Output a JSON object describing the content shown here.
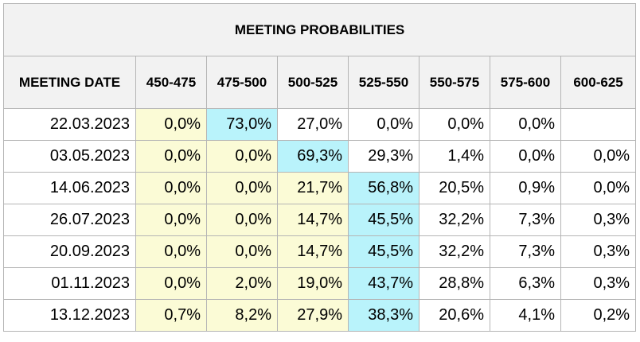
{
  "table": {
    "title": "MEETING PROBABILITIES",
    "headers": [
      "MEETING DATE",
      "450-475",
      "475-500",
      "500-525",
      "525-550",
      "550-575",
      "575-600",
      "600-625"
    ],
    "rows": [
      {
        "date": "22.03.2023",
        "cells": [
          {
            "v": "0,0%",
            "bg": "y"
          },
          {
            "v": "73,0%",
            "bg": "c"
          },
          {
            "v": "27,0%",
            "bg": "w"
          },
          {
            "v": "0,0%",
            "bg": "w"
          },
          {
            "v": "0,0%",
            "bg": "w"
          },
          {
            "v": "0,0%",
            "bg": "w"
          },
          {
            "v": "",
            "bg": "w"
          }
        ]
      },
      {
        "date": "03.05.2023",
        "cells": [
          {
            "v": "0,0%",
            "bg": "y"
          },
          {
            "v": "0,0%",
            "bg": "y"
          },
          {
            "v": "69,3%",
            "bg": "c"
          },
          {
            "v": "29,3%",
            "bg": "w"
          },
          {
            "v": "1,4%",
            "bg": "w"
          },
          {
            "v": "0,0%",
            "bg": "w"
          },
          {
            "v": "0,0%",
            "bg": "w"
          }
        ]
      },
      {
        "date": "14.06.2023",
        "cells": [
          {
            "v": "0,0%",
            "bg": "y"
          },
          {
            "v": "0,0%",
            "bg": "y"
          },
          {
            "v": "21,7%",
            "bg": "y"
          },
          {
            "v": "56,8%",
            "bg": "c"
          },
          {
            "v": "20,5%",
            "bg": "w"
          },
          {
            "v": "0,9%",
            "bg": "w"
          },
          {
            "v": "0,0%",
            "bg": "w"
          }
        ]
      },
      {
        "date": "26.07.2023",
        "cells": [
          {
            "v": "0,0%",
            "bg": "y"
          },
          {
            "v": "0,0%",
            "bg": "y"
          },
          {
            "v": "14,7%",
            "bg": "y"
          },
          {
            "v": "45,5%",
            "bg": "c"
          },
          {
            "v": "32,2%",
            "bg": "w"
          },
          {
            "v": "7,3%",
            "bg": "w"
          },
          {
            "v": "0,3%",
            "bg": "w"
          }
        ]
      },
      {
        "date": "20.09.2023",
        "cells": [
          {
            "v": "0,0%",
            "bg": "y"
          },
          {
            "v": "0,0%",
            "bg": "y"
          },
          {
            "v": "14,7%",
            "bg": "y"
          },
          {
            "v": "45,5%",
            "bg": "c"
          },
          {
            "v": "32,2%",
            "bg": "w"
          },
          {
            "v": "7,3%",
            "bg": "w"
          },
          {
            "v": "0,3%",
            "bg": "w"
          }
        ]
      },
      {
        "date": "01.11.2023",
        "cells": [
          {
            "v": "0,0%",
            "bg": "y"
          },
          {
            "v": "2,0%",
            "bg": "y"
          },
          {
            "v": "19,0%",
            "bg": "y"
          },
          {
            "v": "43,7%",
            "bg": "c"
          },
          {
            "v": "28,8%",
            "bg": "w"
          },
          {
            "v": "6,3%",
            "bg": "w"
          },
          {
            "v": "0,3%",
            "bg": "w"
          }
        ]
      },
      {
        "date": "13.12.2023",
        "cells": [
          {
            "v": "0,7%",
            "bg": "y"
          },
          {
            "v": "8,2%",
            "bg": "y"
          },
          {
            "v": "27,9%",
            "bg": "y"
          },
          {
            "v": "38,3%",
            "bg": "c"
          },
          {
            "v": "20,6%",
            "bg": "w"
          },
          {
            "v": "4,1%",
            "bg": "w"
          },
          {
            "v": "0,2%",
            "bg": "w"
          }
        ]
      }
    ]
  },
  "colors": {
    "header_bg": "#f2f2f2",
    "border": "#b5b5b5",
    "yellow_cell": "#fbfbd6",
    "cyan_cell": "#b9f3fb",
    "white_cell": "#ffffff"
  }
}
